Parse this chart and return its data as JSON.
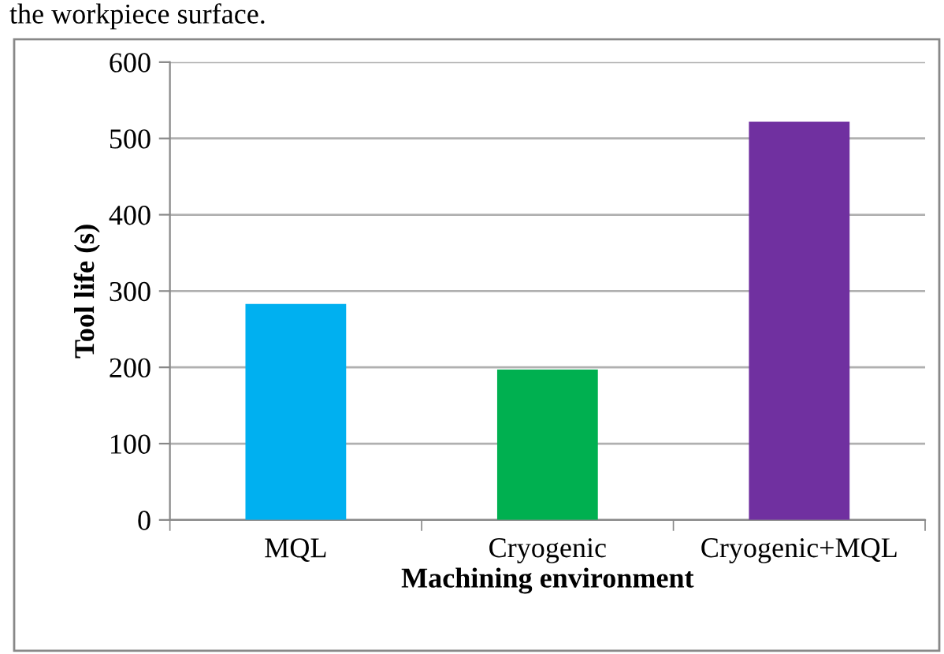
{
  "chart_data": {
    "type": "bar",
    "xlabel": "Machining environment",
    "ylabel": "Tool life (s)",
    "categories": [
      "MQL",
      "Cryogenic",
      "Cryogenic+MQL"
    ],
    "values": [
      283,
      197,
      522
    ],
    "colors": [
      "#00b0f0",
      "#00b050",
      "#7030a0"
    ],
    "ylim": [
      0,
      600
    ],
    "yticks": [
      0,
      100,
      200,
      300,
      400,
      500,
      600
    ],
    "grid": "y",
    "annotations": [
      "the workpiece surface."
    ]
  }
}
